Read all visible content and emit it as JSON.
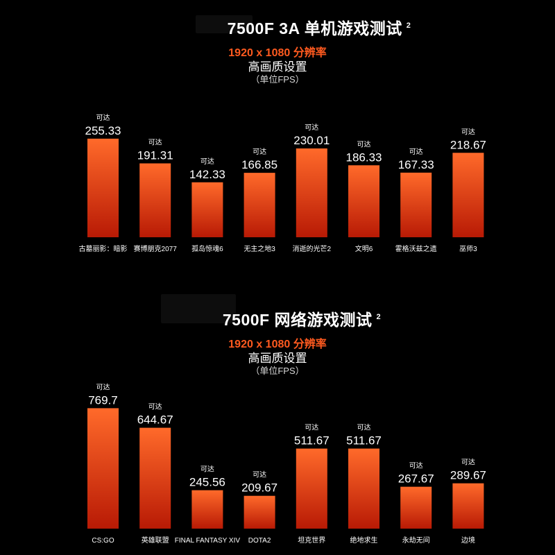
{
  "colors": {
    "bar_top": "#ff6a2a",
    "bar_bottom": "#b81a05",
    "accent": "#ff5a1f",
    "background": "#000000"
  },
  "charts": [
    {
      "title": "7500F 3A 单机游戏测试",
      "title_sup": "2",
      "subtitle": "1920 x 1080 分辨率",
      "setting": "高画质设置",
      "unit": "（单位FPS）"
    },
    {
      "title": "7500F 网络游戏测试",
      "title_sup": "2",
      "subtitle": "1920 x 1080 分辨率",
      "setting": "高画质设置",
      "unit": "（单位FPS）"
    }
  ],
  "chart_data": [
    {
      "type": "bar",
      "categories": [
        "古墓丽影：暗影",
        "赛博朋克2077",
        "孤岛惊魂6",
        "无主之地3",
        "消逝的光芒2",
        "文明6",
        "霍格沃兹之遗",
        "巫师3"
      ],
      "values": [
        255.33,
        191.31,
        142.33,
        166.85,
        230.01,
        186.33,
        167.33,
        218.67
      ],
      "value_prefix": "可达",
      "ylim": [
        0,
        300
      ]
    },
    {
      "type": "bar",
      "categories": [
        "CS:GO",
        "英雄联盟",
        "FINAL FANTASY XIV",
        "DOTA2",
        "坦克世界",
        "绝地求生",
        "永劫无间",
        "边境"
      ],
      "values": [
        769.7,
        644.67,
        245.56,
        209.67,
        511.67,
        511.67,
        267.67,
        289.67
      ],
      "value_prefix": "可达",
      "ylim": [
        0,
        900
      ]
    }
  ]
}
